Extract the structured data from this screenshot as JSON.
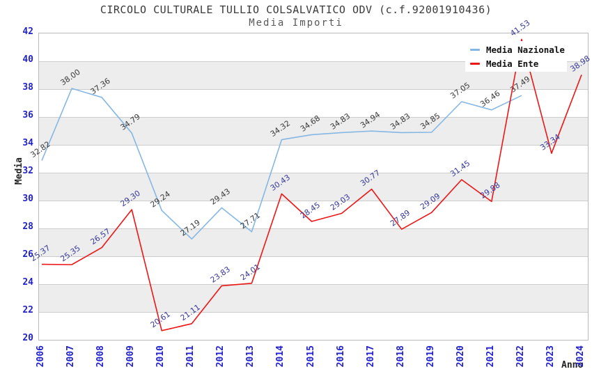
{
  "header": {
    "title": "CIRCOLO CULTURALE TULLIO COLSALVATICO ODV (c.f.92001910436)",
    "subtitle": "Media Importi"
  },
  "legend": {
    "items": [
      {
        "label": "Media Nazionale",
        "color": "#85b7e4"
      },
      {
        "label": "Media Ente",
        "color": "#ee1515"
      }
    ]
  },
  "axes": {
    "y_title": "Media",
    "x_title": "Anno",
    "y_ticks": [
      42,
      40,
      38,
      36,
      34,
      32,
      30,
      28,
      26,
      24,
      22,
      20
    ],
    "x_ticks": [
      "2006",
      "2007",
      "2008",
      "2009",
      "2010",
      "2011",
      "2012",
      "2013",
      "2014",
      "2015",
      "2016",
      "2017",
      "2018",
      "2019",
      "2020",
      "2021",
      "2022",
      "2023",
      "2024"
    ]
  },
  "colors": {
    "tick_label": "#2121cd",
    "band_gray": "#ededed",
    "gridline": "#cccccc",
    "nazionale_line": "#85b7e4",
    "ente_line": "#ee1515",
    "nazionale_point_label": "#3a3a3a",
    "ente_point_label": "#38389b"
  },
  "chart_data": {
    "type": "line",
    "title": "CIRCOLO CULTURALE TULLIO COLSALVATICO ODV (c.f.92001910436)",
    "subtitle": "Media Importi",
    "xlabel": "Anno",
    "ylabel": "Media",
    "ylim": [
      20,
      42
    ],
    "y_step": 2,
    "grid": "horizontal-bands",
    "legend_position": "top-right",
    "x": [
      2006,
      2007,
      2008,
      2009,
      2010,
      2011,
      2012,
      2013,
      2014,
      2015,
      2016,
      2017,
      2018,
      2019,
      2020,
      2021,
      2022,
      2023,
      2024
    ],
    "series": [
      {
        "name": "Media Nazionale",
        "color": "#85b7e4",
        "label_color": "#3a3a3a",
        "values": [
          32.82,
          38.0,
          37.36,
          34.79,
          29.24,
          27.19,
          29.43,
          27.71,
          34.32,
          34.68,
          34.83,
          34.94,
          34.83,
          34.85,
          37.05,
          36.46,
          37.49,
          null,
          null
        ]
      },
      {
        "name": "Media Ente",
        "color": "#ee1515",
        "label_color": "#38389b",
        "values": [
          25.37,
          25.35,
          26.57,
          29.3,
          20.61,
          21.11,
          23.83,
          24.01,
          30.43,
          28.45,
          29.03,
          30.77,
          27.89,
          29.09,
          31.45,
          29.88,
          41.53,
          33.34,
          38.98
        ]
      }
    ]
  }
}
